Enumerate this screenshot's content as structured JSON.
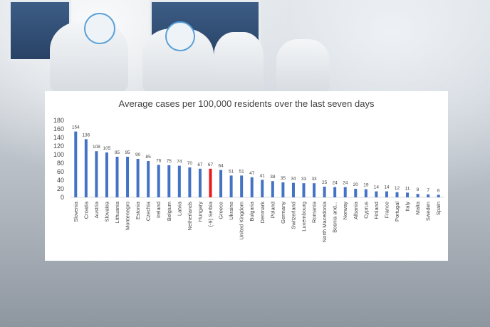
{
  "chart_data": {
    "type": "bar",
    "title": "Average cases per 100,000 residents over the last seven days",
    "xlabel": "",
    "ylabel": "",
    "ylim": [
      0,
      180
    ],
    "yticks": [
      0,
      20,
      40,
      60,
      80,
      100,
      120,
      140,
      160,
      180
    ],
    "grid": false,
    "categories": [
      "Slovenia",
      "Croatia",
      "Austria",
      "Slovakia",
      "Lithuania",
      "Montenegro",
      "Estonia",
      "Czechia",
      "Ireland",
      "Belgium",
      "Latvia",
      "Netherlands",
      "Hungary",
      "(-9) Serbia",
      "Greece",
      "Ukraine",
      "United Kingdom",
      "Bulgaria",
      "Denmark",
      "Poland",
      "Germany",
      "Switzerland",
      "Luxembourg",
      "Romania",
      "North Macedonia",
      "Bosnia and...",
      "Norway",
      "Albania",
      "Cyprus",
      "Finland",
      "France",
      "Portugal",
      "Italy",
      "Malta",
      "Sweden",
      "Spain"
    ],
    "values": [
      154,
      136,
      108,
      105,
      95,
      95,
      90,
      85,
      76,
      75,
      74,
      70,
      67,
      67,
      64,
      51,
      51,
      47,
      41,
      38,
      35,
      34,
      33,
      33,
      25,
      24,
      24,
      20,
      19,
      14,
      14,
      12,
      11,
      8,
      7,
      6
    ],
    "highlight_category": "(-9) Serbia",
    "bar_color": "#4472c4",
    "highlight_color": "#e8191b"
  }
}
